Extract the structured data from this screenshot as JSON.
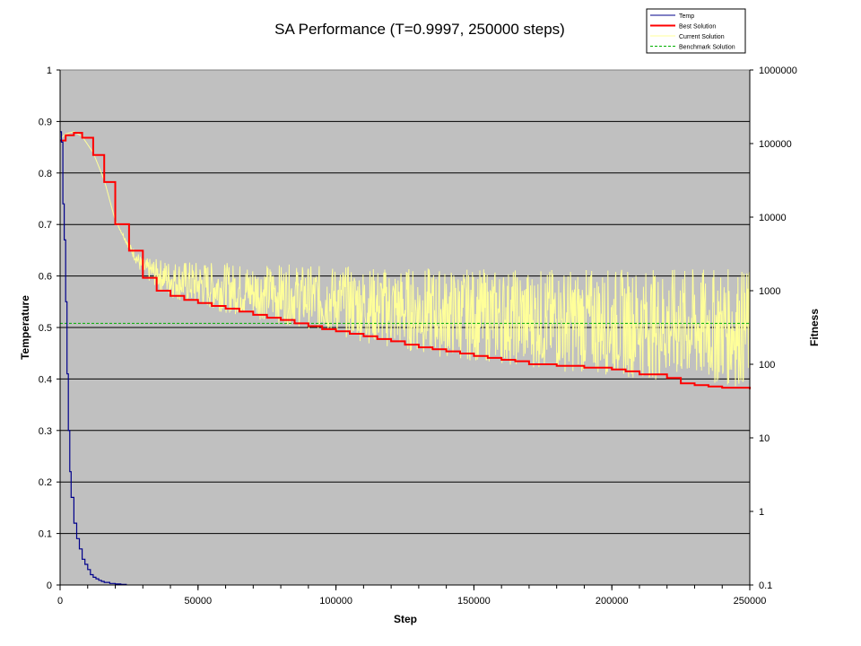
{
  "chart_data": {
    "type": "line",
    "title": "SA Performance (T=0.9997, 250000 steps)",
    "xlabel": "Step",
    "ylabel_left": "Temperature",
    "ylabel_right": "Fitness",
    "xlim": [
      0,
      250000
    ],
    "ylim_left": [
      0,
      1
    ],
    "ylim_right": [
      0.1,
      1000000
    ],
    "right_scale": "log",
    "x_ticks": [
      "0",
      "50000",
      "100000",
      "150000",
      "200000",
      "250000"
    ],
    "y_left_ticks": [
      "0",
      "0.1",
      "0.2",
      "0.3",
      "0.4",
      "0.5",
      "0.6",
      "0.7",
      "0.8",
      "0.9",
      "1"
    ],
    "y_right_ticks": [
      "0.1",
      "1",
      "10",
      "100",
      "1000",
      "10000",
      "100000",
      "1000000"
    ],
    "grid": "horizontal",
    "plot_background": "#c0c0c0",
    "legend_position": "top-right",
    "series": [
      {
        "name": "Temp",
        "axis": "left",
        "color": "#00008b",
        "x": [
          0,
          500,
          1000,
          1500,
          2000,
          2500,
          3000,
          3500,
          4000,
          5000,
          6000,
          7000,
          8000,
          9000,
          10000,
          11000,
          12000,
          13000,
          14000,
          15000,
          16000,
          18000,
          20000,
          22000,
          24000
        ],
        "values": [
          0.88,
          0.86,
          0.74,
          0.67,
          0.55,
          0.41,
          0.3,
          0.22,
          0.17,
          0.12,
          0.09,
          0.07,
          0.05,
          0.04,
          0.03,
          0.02,
          0.015,
          0.012,
          0.009,
          0.007,
          0.005,
          0.003,
          0.002,
          0.001,
          0.0
        ]
      },
      {
        "name": "Best Solution",
        "axis": "right",
        "color": "#ff0000",
        "x": [
          0,
          2000,
          5000,
          8000,
          12000,
          16000,
          20000,
          25000,
          30000,
          35000,
          40000,
          45000,
          50000,
          55000,
          60000,
          65000,
          70000,
          75000,
          80000,
          85000,
          90000,
          95000,
          100000,
          105000,
          110000,
          115000,
          120000,
          125000,
          130000,
          135000,
          140000,
          145000,
          150000,
          155000,
          160000,
          165000,
          170000,
          180000,
          190000,
          200000,
          205000,
          210000,
          220000,
          225000,
          230000,
          235000,
          240000,
          250000
        ],
        "values": [
          110000,
          130000,
          140000,
          120000,
          70000,
          30000,
          8000,
          3500,
          1500,
          1000,
          850,
          750,
          680,
          620,
          570,
          520,
          470,
          430,
          400,
          360,
          330,
          300,
          280,
          260,
          240,
          220,
          205,
          185,
          170,
          160,
          150,
          140,
          130,
          122,
          115,
          110,
          100,
          95,
          90,
          85,
          80,
          73,
          65,
          55,
          52,
          50,
          48,
          46
        ]
      },
      {
        "name": "Current Solution",
        "axis": "right",
        "color": "#ffff99",
        "x": [
          0,
          2000,
          5000,
          8000,
          12000,
          16000,
          20000,
          25000,
          30000,
          40000,
          50000,
          60000,
          70000,
          80000,
          90000,
          100000,
          110000,
          120000,
          130000,
          140000,
          150000,
          160000,
          170000,
          180000,
          190000,
          200000,
          210000,
          220000,
          230000,
          240000,
          250000
        ],
        "values": [
          115000,
          135000,
          145000,
          125000,
          75000,
          32000,
          9000,
          4000,
          2000,
          1600,
          1400,
          1300,
          1250,
          1200,
          1150,
          1100,
          1050,
          1000,
          980,
          950,
          930,
          900,
          880,
          860,
          840,
          820,
          800,
          780,
          760,
          740,
          720
        ],
        "band_min": [
          115000,
          135000,
          145000,
          125000,
          75000,
          32000,
          9000,
          3600,
          1500,
          800,
          600,
          500,
          420,
          360,
          300,
          250,
          200,
          160,
          140,
          120,
          110,
          100,
          90,
          80,
          75,
          70,
          65,
          60,
          55,
          50,
          48
        ],
        "band_max": [
          115000,
          135000,
          145000,
          125000,
          75000,
          32000,
          9000,
          4500,
          2800,
          2600,
          2500,
          2400,
          2300,
          2300,
          2200,
          2200,
          2100,
          2100,
          2100,
          2000,
          2000,
          2000,
          2000,
          2000,
          2000,
          2000,
          2000,
          2000,
          2000,
          2000,
          2000
        ]
      },
      {
        "name": "Benchmark Solution",
        "axis": "right",
        "color": "#00b000",
        "x": [
          0,
          250000
        ],
        "values": [
          360,
          360
        ]
      }
    ]
  }
}
